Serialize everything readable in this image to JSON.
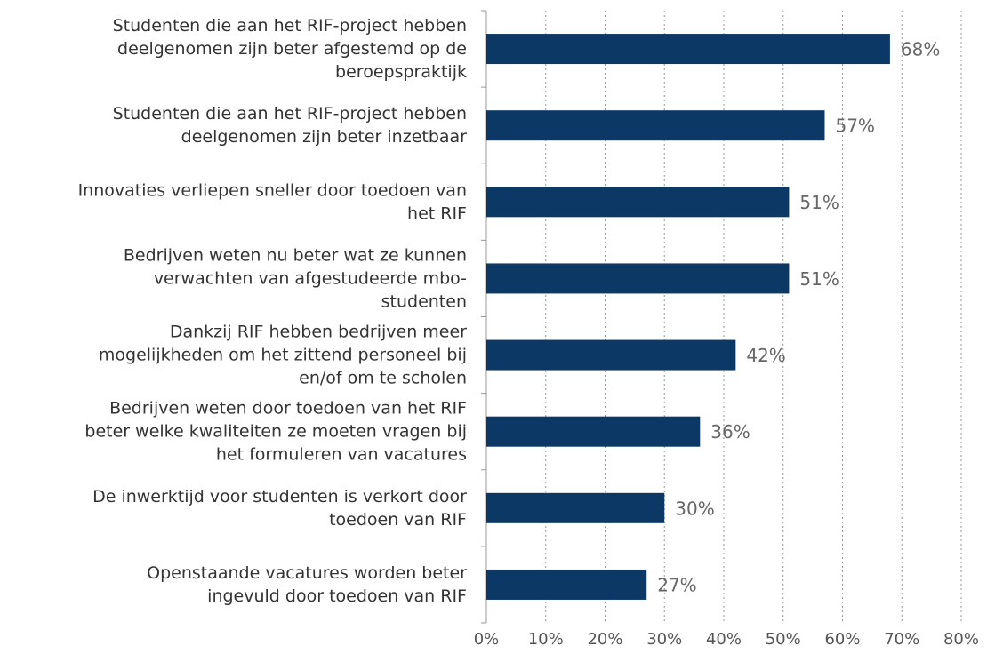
{
  "chart_data": {
    "type": "bar",
    "orientation": "horizontal",
    "categories": [
      "Studenten die aan het RIF-project hebben\ndeelgenomen zijn beter afgestemd op de\nberoepspraktijk",
      "Studenten die aan het RIF-project hebben\ndeelgenomen zijn beter inzetbaar",
      "Innovaties verliepen sneller door toedoen van\nhet RIF",
      "Bedrijven weten nu beter wat ze kunnen\nverwachten van afgestudeerde mbo-\nstudenten",
      "Dankzij RIF hebben bedrijven meer\nmogelijkheden om het zittend personeel bij\nen/of om te scholen",
      "Bedrijven weten door toedoen van het RIF\nbeter welke kwaliteiten ze moeten vragen bij\nhet formuleren van vacatures",
      "De inwerktijd voor studenten is verkort door\ntoedoen van RIF",
      "Openstaande vacatures worden beter\ningevuld door toedoen van RIF"
    ],
    "values": [
      68,
      57,
      51,
      51,
      42,
      36,
      30,
      27
    ],
    "value_labels": [
      "68%",
      "57%",
      "51%",
      "51%",
      "42%",
      "36%",
      "30%",
      "27%"
    ],
    "color": "#0b3865",
    "xlim": [
      0,
      80
    ],
    "xticks": [
      {
        "value": 0,
        "label": "0%"
      },
      {
        "value": 10,
        "label": "10%"
      },
      {
        "value": 20,
        "label": "20%"
      },
      {
        "value": 30,
        "label": "30%"
      },
      {
        "value": 40,
        "label": "40%"
      },
      {
        "value": 50,
        "label": "50%"
      },
      {
        "value": 60,
        "label": "60%"
      },
      {
        "value": 70,
        "label": "70%"
      },
      {
        "value": 80,
        "label": "80%"
      }
    ],
    "grid": true
  }
}
